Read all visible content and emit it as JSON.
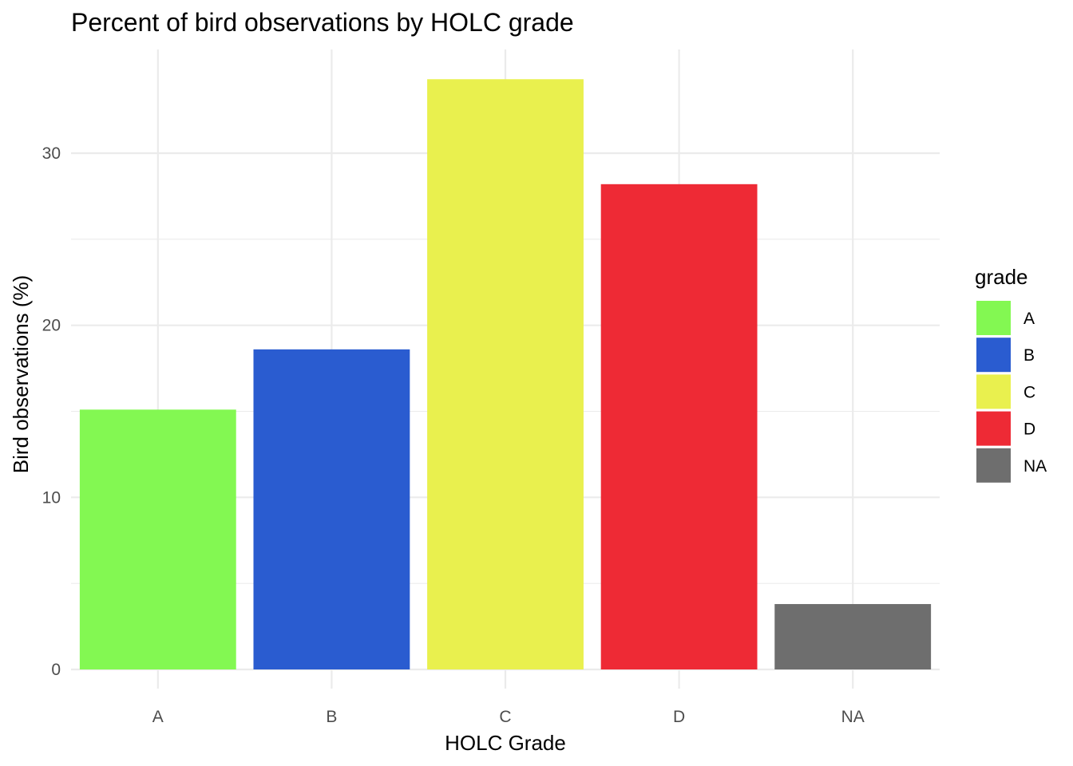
{
  "chart_data": {
    "type": "bar",
    "title": "Percent of bird observations by HOLC grade",
    "xlabel": "HOLC Grade",
    "ylabel": "Bird observations (%)",
    "categories": [
      "A",
      "B",
      "C",
      "D",
      "NA"
    ],
    "values": [
      15.1,
      18.6,
      34.3,
      28.2,
      3.8
    ],
    "colors": [
      "#83f852",
      "#2a5cd0",
      "#e9f04e",
      "#ee2a35",
      "#6e6e6e"
    ],
    "ylim": [
      0,
      35
    ],
    "yticks": [
      0,
      10,
      20,
      30
    ],
    "grid": true,
    "legend": {
      "title": "grade",
      "placement": "right",
      "entries": [
        "A",
        "B",
        "C",
        "D",
        "NA"
      ]
    }
  }
}
